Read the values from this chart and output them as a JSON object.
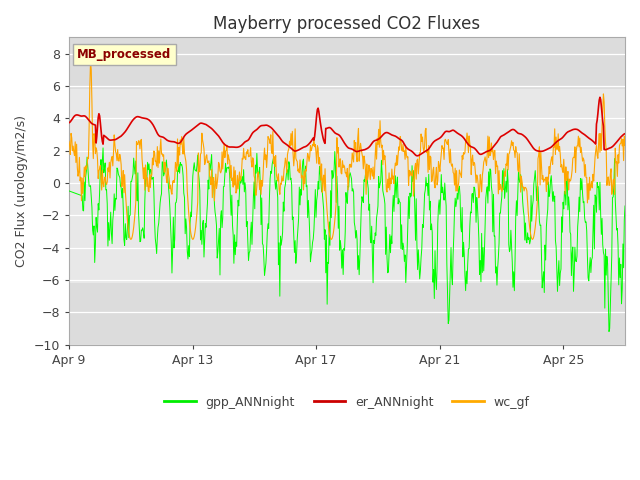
{
  "title": "Mayberry processed CO2 Fluxes",
  "ylabel": "CO2 Flux (urology/m2/s)",
  "ylim": [
    -10,
    9
  ],
  "yticks": [
    -10,
    -8,
    -6,
    -4,
    -2,
    0,
    2,
    4,
    6,
    8
  ],
  "xlabels": [
    "Apr 9",
    "Apr 13",
    "Apr 17",
    "Apr 21",
    "Apr 25"
  ],
  "x_tick_positions": [
    0,
    4,
    8,
    12,
    16
  ],
  "legend_label": "MB_processed",
  "line_colors": {
    "gpp": "#00ff00",
    "er": "#dd0000",
    "wc": "#ffa500"
  },
  "legend_colors": {
    "gpp": "#00ee00",
    "er": "#cc0000",
    "wc": "#ffaa00"
  },
  "legend_entries": [
    "gpp_ANNnight",
    "er_ANNnight",
    "wc_gf"
  ],
  "bg_color": "#dcdcdc",
  "inner_band_color": "#e8e8e8",
  "band_ymin": -6.2,
  "band_ymax": 5.8,
  "title_fontsize": 12,
  "tick_fontsize": 9,
  "label_fontsize": 9,
  "n_points": 800,
  "total_days": 18
}
